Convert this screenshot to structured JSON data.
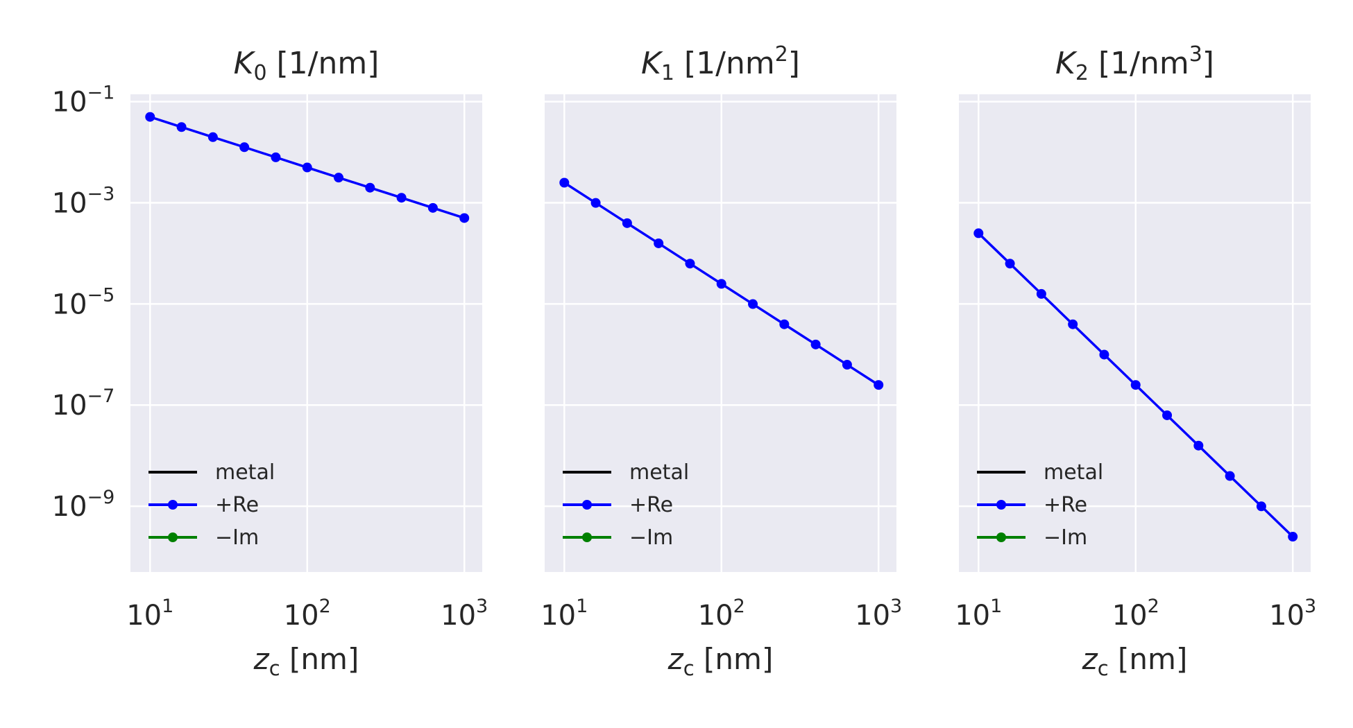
{
  "chart_data": [
    {
      "type": "line",
      "title": "K₀ [1/nm]",
      "title_parts": {
        "symbol": "K",
        "sub": "0",
        "unit_base": " [1/nm",
        "unit_sup": "",
        "unit_end": "]"
      },
      "xlabel": "z_c [nm]",
      "xlabel_parts": {
        "symbol": "z",
        "sub": "c",
        "rest": " [nm]"
      },
      "xscale": "log",
      "yscale": "log",
      "xlim": [
        7.5,
        1300
      ],
      "ylim": [
        5e-11,
        0.14
      ],
      "xticks": [
        {
          "base": "10",
          "exp": "1"
        },
        {
          "base": "10",
          "exp": "2"
        },
        {
          "base": "10",
          "exp": "3"
        }
      ],
      "yticks": [
        {
          "base": "10",
          "exp": "−1"
        },
        {
          "base": "10",
          "exp": "−3"
        },
        {
          "base": "10",
          "exp": "−5"
        },
        {
          "base": "10",
          "exp": "−7"
        },
        {
          "base": "10",
          "exp": "−9"
        }
      ],
      "grid": true,
      "legend_placement": "lower-left",
      "series": [
        {
          "name": "metal",
          "color": "#000000",
          "marker": false,
          "x": [],
          "y": []
        },
        {
          "name": "+Re",
          "color": "#0000ff",
          "marker": true,
          "x": [
            10,
            15.85,
            25.12,
            39.81,
            63.1,
            100,
            158.5,
            251.2,
            398.1,
            631,
            1000
          ],
          "y": [
            0.05,
            0.0315,
            0.0199,
            0.0126,
            0.00794,
            0.005,
            0.00315,
            0.00199,
            0.00126,
            0.000794,
            0.0005
          ]
        },
        {
          "name": "−Im",
          "color": "#008000",
          "marker": true,
          "x": [],
          "y": []
        }
      ]
    },
    {
      "type": "line",
      "title": "K₁ [1/nm²]",
      "title_parts": {
        "symbol": "K",
        "sub": "1",
        "unit_base": " [1/nm",
        "unit_sup": "2",
        "unit_end": "]"
      },
      "xlabel": "z_c [nm]",
      "xlabel_parts": {
        "symbol": "z",
        "sub": "c",
        "rest": " [nm]"
      },
      "xscale": "log",
      "yscale": "log",
      "xlim": [
        7.5,
        1300
      ],
      "ylim": [
        5e-11,
        0.14
      ],
      "xticks": [
        {
          "base": "10",
          "exp": "1"
        },
        {
          "base": "10",
          "exp": "2"
        },
        {
          "base": "10",
          "exp": "3"
        }
      ],
      "yticks": [],
      "grid": true,
      "legend_placement": "lower-left",
      "series": [
        {
          "name": "metal",
          "color": "#000000",
          "marker": false,
          "x": [],
          "y": []
        },
        {
          "name": "+Re",
          "color": "#0000ff",
          "marker": true,
          "x": [
            10,
            15.85,
            25.12,
            39.81,
            63.1,
            100,
            158.5,
            251.2,
            398.1,
            631,
            1000
          ],
          "y": [
            0.0025,
            0.000995,
            0.000396,
            0.000158,
            6.28e-05,
            2.5e-05,
            9.95e-06,
            3.96e-06,
            1.58e-06,
            6.28e-07,
            2.5e-07
          ]
        },
        {
          "name": "−Im",
          "color": "#008000",
          "marker": true,
          "x": [],
          "y": []
        }
      ]
    },
    {
      "type": "line",
      "title": "K₂ [1/nm³]",
      "title_parts": {
        "symbol": "K",
        "sub": "2",
        "unit_base": " [1/nm",
        "unit_sup": "3",
        "unit_end": "]"
      },
      "xlabel": "z_c [nm]",
      "xlabel_parts": {
        "symbol": "z",
        "sub": "c",
        "rest": " [nm]"
      },
      "xscale": "log",
      "yscale": "log",
      "xlim": [
        7.5,
        1300
      ],
      "ylim": [
        5e-11,
        0.14
      ],
      "xticks": [
        {
          "base": "10",
          "exp": "1"
        },
        {
          "base": "10",
          "exp": "2"
        },
        {
          "base": "10",
          "exp": "3"
        }
      ],
      "yticks": [],
      "grid": true,
      "legend_placement": "lower-left",
      "series": [
        {
          "name": "metal",
          "color": "#000000",
          "marker": false,
          "x": [],
          "y": []
        },
        {
          "name": "+Re",
          "color": "#0000ff",
          "marker": true,
          "x": [
            10,
            15.85,
            25.12,
            39.81,
            63.1,
            100,
            158.5,
            251.2,
            398.1,
            631,
            1000
          ],
          "y": [
            0.00025,
            6.28e-05,
            1.58e-05,
            3.96e-06,
            9.95e-07,
            2.5e-07,
            6.28e-08,
            1.58e-08,
            3.96e-09,
            9.95e-10,
            2.5e-10
          ]
        },
        {
          "name": "−Im",
          "color": "#008000",
          "marker": true,
          "x": [],
          "y": []
        }
      ]
    }
  ]
}
